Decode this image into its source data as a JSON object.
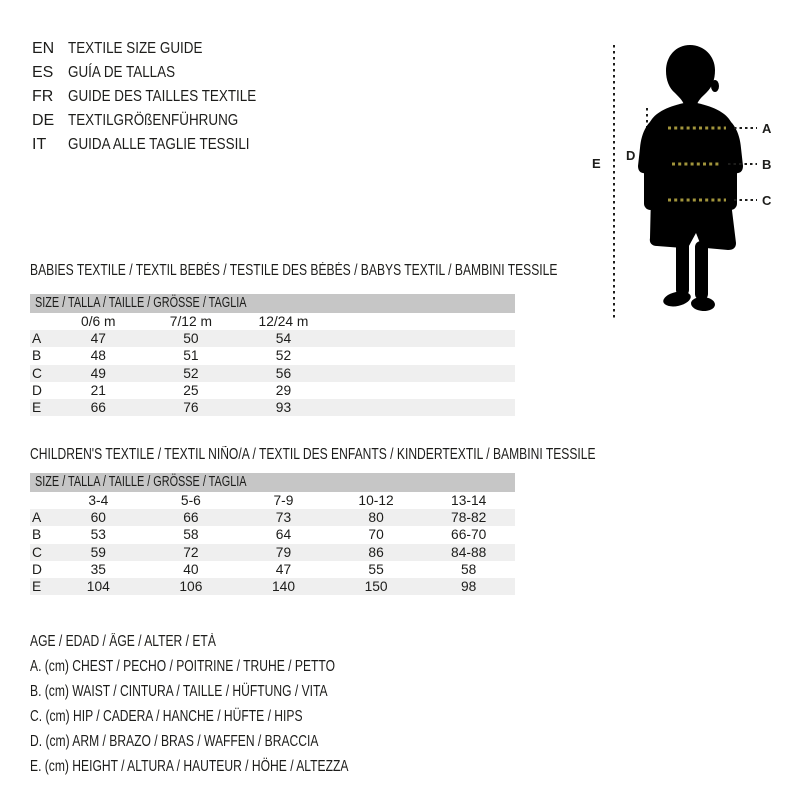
{
  "languages": [
    {
      "code": "EN",
      "label": "TEXTILE SIZE GUIDE"
    },
    {
      "code": "ES",
      "label": "GUÍA DE TALLAS"
    },
    {
      "code": "FR",
      "label": "GUIDE DES TAILLES TEXTILE"
    },
    {
      "code": "DE",
      "label": "TEXTILGRÖßENFÜHRUNG"
    },
    {
      "code": "IT",
      "label": "GUIDA ALLE TAGLIE TESSILI"
    }
  ],
  "figure": {
    "labels": {
      "a": "A",
      "b": "B",
      "c": "C",
      "d": "D",
      "e": "E"
    },
    "silhouette_color": "#000000",
    "body_dot_color": "#a2953c",
    "line_dot_color": "#1d1d1b"
  },
  "babies": {
    "heading": "BABIES TEXTILE / TEXTIL BEBÉS / TESTILE DES BÉBÉS / BABYS TEXTIL / BAMBINI TESSILE",
    "size_header": "SIZE / TALLA / TAILLE / GRÖSSE / TAGLIA",
    "columns": [
      "0/6 m",
      "7/12 m",
      "12/24 m"
    ],
    "rows": [
      {
        "label": "A",
        "values": [
          "47",
          "50",
          "54"
        ]
      },
      {
        "label": "B",
        "values": [
          "48",
          "51",
          "52"
        ]
      },
      {
        "label": "C",
        "values": [
          "49",
          "52",
          "56"
        ]
      },
      {
        "label": "D",
        "values": [
          "21",
          "25",
          "29"
        ]
      },
      {
        "label": "E",
        "values": [
          "66",
          "76",
          "93"
        ]
      }
    ]
  },
  "children": {
    "heading": "CHILDREN'S TEXTILE / TEXTIL NIÑO/A / TEXTIL DES ENFANTS / KINDERTEXTIL / BAMBINI TESSILE",
    "size_header": "SIZE / TALLA / TAILLE / GRÖSSE / TAGLIA",
    "columns": [
      "3-4",
      "5-6",
      "7-9",
      "10-12",
      "13-14"
    ],
    "rows": [
      {
        "label": "A",
        "values": [
          "60",
          "66",
          "73",
          "80",
          "78-82"
        ]
      },
      {
        "label": "B",
        "values": [
          "53",
          "58",
          "64",
          "70",
          "66-70"
        ]
      },
      {
        "label": "C",
        "values": [
          "59",
          "72",
          "79",
          "86",
          "84-88"
        ]
      },
      {
        "label": "D",
        "values": [
          "35",
          "40",
          "47",
          "55",
          "58"
        ]
      },
      {
        "label": "E",
        "values": [
          "104",
          "106",
          "140",
          "150",
          "98"
        ]
      }
    ]
  },
  "legend": {
    "title": "AGE / EDAD / ÂGE / ALTER / ETÀ",
    "items": [
      "A. (cm) CHEST / PECHO / POITRINE / TRUHE / PETTO",
      "B. (cm) WAIST / CINTURA / TAILLE / HÜFTUNG / VITA",
      "C. (cm) HIP / CADERA / HANCHE / HÜFTE / HIPS",
      "D. (cm) ARM / BRAZO / BRAS / WAFFEN / BRACCIA",
      "E. (cm) HEIGHT / ALTURA / HAUTEUR / HÖHE / ALTEZZA"
    ]
  }
}
